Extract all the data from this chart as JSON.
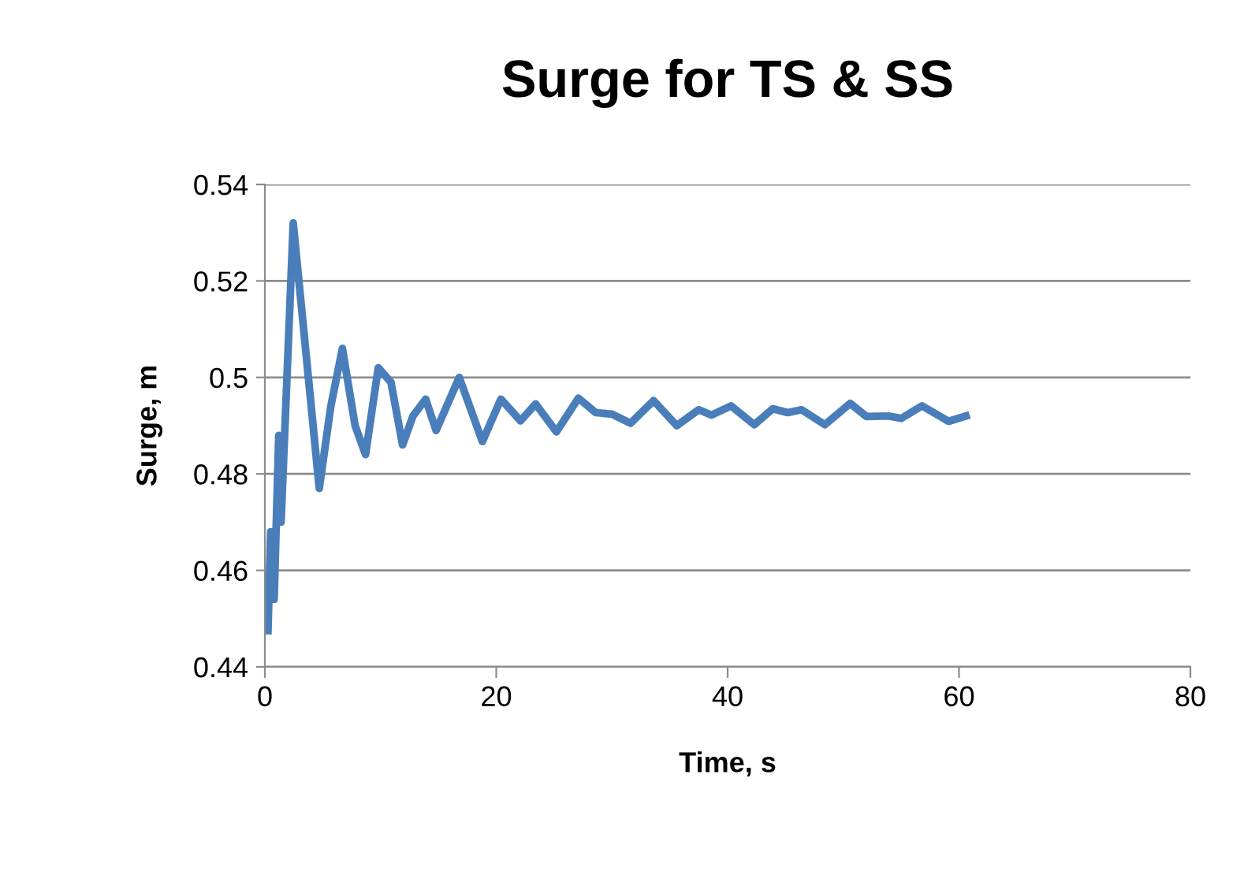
{
  "chart_data": {
    "type": "line",
    "title": "Surge for TS & SS",
    "xlabel": "Time, s",
    "ylabel": "Surge, m",
    "x": [
      0.27,
      0.5,
      0.8,
      1.2,
      1.4,
      2.45,
      4.7,
      5.7,
      6.7,
      7.8,
      8.7,
      9.8,
      10.9,
      11.9,
      12.8,
      13.9,
      14.8,
      16.8,
      18.8,
      20.4,
      22.1,
      23.4,
      25.2,
      27.1,
      28.6,
      30.0,
      31.6,
      33.6,
      35.6,
      37.5,
      38.6,
      40.3,
      42.3,
      43.9,
      45.2,
      46.4,
      48.4,
      50.6,
      52.0,
      53.9,
      55.0,
      56.8,
      59.1,
      60.6
    ],
    "series": [
      {
        "color": "#4a7ebb",
        "values": [
          0.4475,
          0.468,
          0.454,
          0.488,
          0.47,
          0.532,
          0.477,
          0.494,
          0.506,
          0.49,
          0.484,
          0.502,
          0.499,
          0.486,
          0.492,
          0.4955,
          0.489,
          0.5,
          0.4867,
          0.4955,
          0.491,
          0.4945,
          0.4887,
          0.4957,
          0.4927,
          0.4924,
          0.4905,
          0.4952,
          0.49,
          0.4933,
          0.4922,
          0.4941,
          0.4902,
          0.4935,
          0.4927,
          0.4933,
          0.4902,
          0.4946,
          0.4919,
          0.492,
          0.4915,
          0.4941,
          0.4909,
          0.492
        ]
      }
    ],
    "xlim": [
      0,
      80
    ],
    "xticks": [
      0,
      20,
      40,
      60,
      80
    ],
    "ylim": [
      0.44,
      0.54
    ],
    "yticks": [
      0.44,
      0.46,
      0.48,
      0.5,
      0.52,
      0.54
    ],
    "grid": "y",
    "legend": false,
    "marker": "none",
    "line_style": "solid"
  }
}
